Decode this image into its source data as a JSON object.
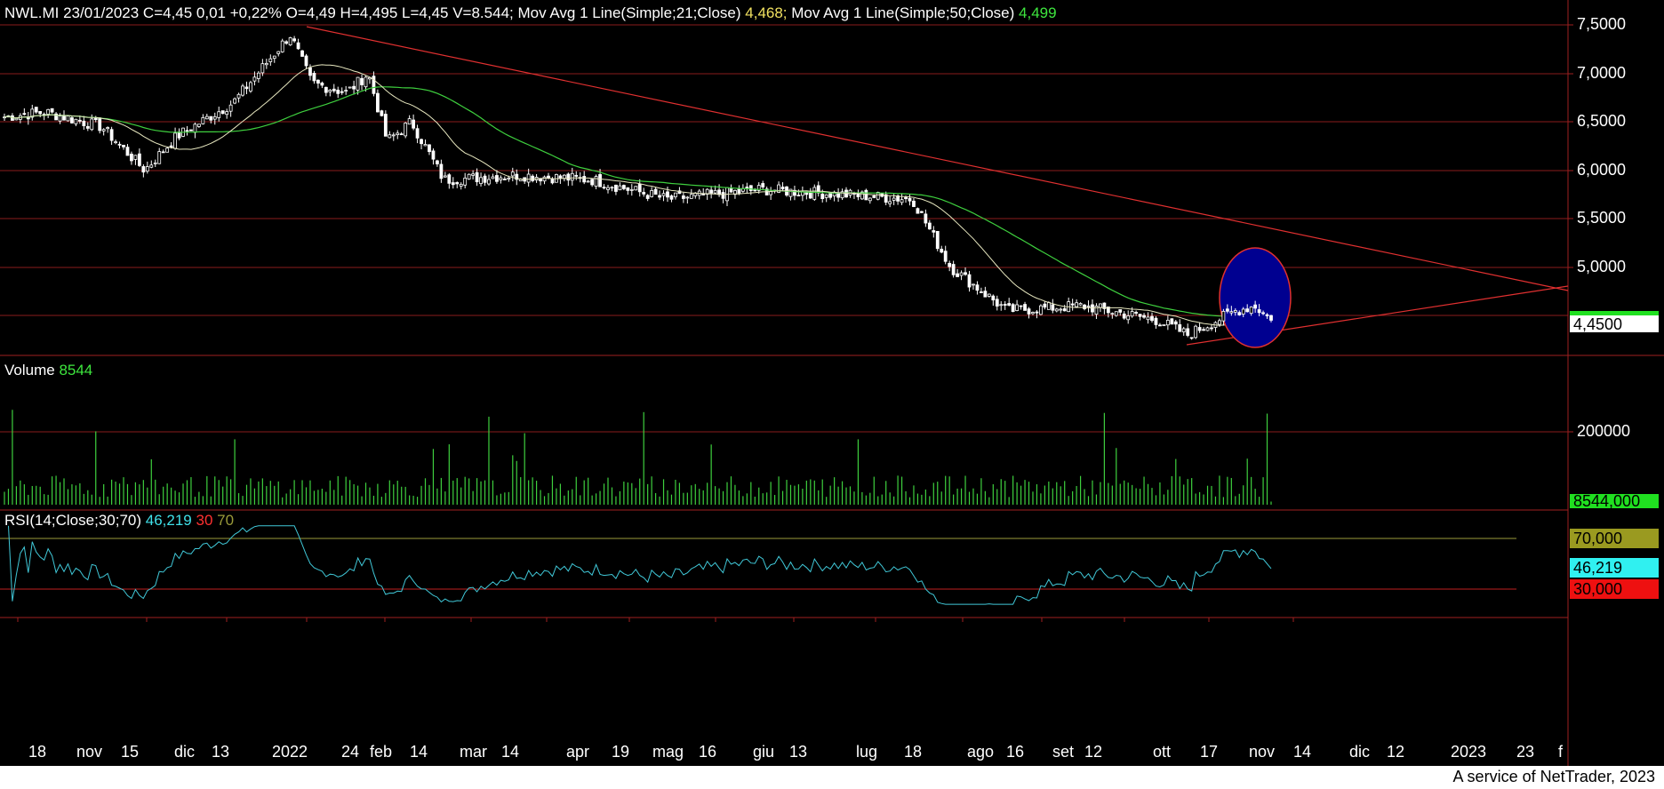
{
  "header": {
    "symbol_line": "NWL.MI 23/01/2023 C=4,45 0,01 +0,22% O=4,49 H=4,495 L=4,45 V=8.544;",
    "ma21_label": "Mov Avg 1 Line(Simple;21;Close)",
    "ma21_value": "4,468;",
    "ma50_label": "Mov Avg 1 Line(Simple;50;Close)",
    "ma50_value": "4,499"
  },
  "volume_header": {
    "label": "Volume",
    "value": "8544"
  },
  "rsi_header": {
    "label": "RSI(14;Close;30;70)",
    "value": "46,219",
    "low": "30",
    "high": "70"
  },
  "price_axis": [
    "7,5000",
    "7,0000",
    "6,5000",
    "6,0000",
    "5,5000",
    "5,0000"
  ],
  "price_tag": "4,4500",
  "volume_axis": "200000",
  "volume_tag": "8544,000",
  "rsi_tags": {
    "high": "70,000",
    "value": "46,219",
    "low": "30,000"
  },
  "x_labels": [
    "18",
    "nov",
    "15",
    "dic",
    "13",
    "2022",
    "24",
    "feb",
    "14",
    "mar",
    "14",
    "apr",
    "19",
    "mag",
    "16",
    "giu",
    "13",
    "lug",
    "18",
    "ago",
    "16",
    "set",
    "12",
    "ott",
    "17",
    "nov",
    "14",
    "dic",
    "12",
    "2023",
    "23",
    "f"
  ],
  "footer": "A service of NetTrader, 2023",
  "colors": {
    "up": "#ffffff",
    "down": "#ffffff",
    "ma21": "#e8e8c0",
    "ma50": "#3ecf3e",
    "trend": "#e03030",
    "volume": "#3ecf3e",
    "rsi": "#40c8d8",
    "ellipse": "#000090"
  },
  "chart_data": {
    "type": "candlestick",
    "panels": [
      "price",
      "volume",
      "rsi"
    ],
    "price_ylim": [
      4.2,
      7.6
    ],
    "price_series": {
      "name": "NWL.MI",
      "key_points": [
        {
          "x": "2021-10-10",
          "close": 6.55
        },
        {
          "x": "2021-10-25",
          "close": 6.6
        },
        {
          "x": "2021-11-15",
          "close": 6.45
        },
        {
          "x": "2021-12-01",
          "close": 6.0
        },
        {
          "x": "2021-12-13",
          "close": 6.35
        },
        {
          "x": "2022-01-03",
          "close": 6.7
        },
        {
          "x": "2022-01-24",
          "close": 7.4
        },
        {
          "x": "2022-02-01",
          "close": 6.9
        },
        {
          "x": "2022-02-14",
          "close": 6.8
        },
        {
          "x": "2022-02-22",
          "close": 7.0
        },
        {
          "x": "2022-03-01",
          "close": 6.3
        },
        {
          "x": "2022-03-10",
          "close": 6.5
        },
        {
          "x": "2022-03-22",
          "close": 5.9
        },
        {
          "x": "2022-04-19",
          "close": 5.95
        },
        {
          "x": "2022-05-16",
          "close": 5.9
        },
        {
          "x": "2022-06-13",
          "close": 5.7
        },
        {
          "x": "2022-07-18",
          "close": 5.8
        },
        {
          "x": "2022-08-16",
          "close": 5.75
        },
        {
          "x": "2022-09-12",
          "close": 5.7
        },
        {
          "x": "2022-09-26",
          "close": 5.0
        },
        {
          "x": "2022-10-17",
          "close": 4.55
        },
        {
          "x": "2022-11-14",
          "close": 4.6
        },
        {
          "x": "2022-12-12",
          "close": 4.45
        },
        {
          "x": "2022-12-23",
          "close": 4.3
        },
        {
          "x": "2023-01-10",
          "close": 4.55
        },
        {
          "x": "2023-01-17",
          "close": 4.6
        },
        {
          "x": "2023-01-23",
          "close": 4.45
        }
      ]
    },
    "ma21_last": 4.468,
    "ma50_last": 4.499,
    "volume_last": 8544,
    "rsi": {
      "last": 46.219,
      "low": 30,
      "high": 70
    },
    "annotations": [
      "descending trendline from 2022-01-24 high to 2023-01-30",
      "rising support line from 2022-12-23",
      "blue ellipse highlighting breakout area Jan 2023"
    ]
  }
}
